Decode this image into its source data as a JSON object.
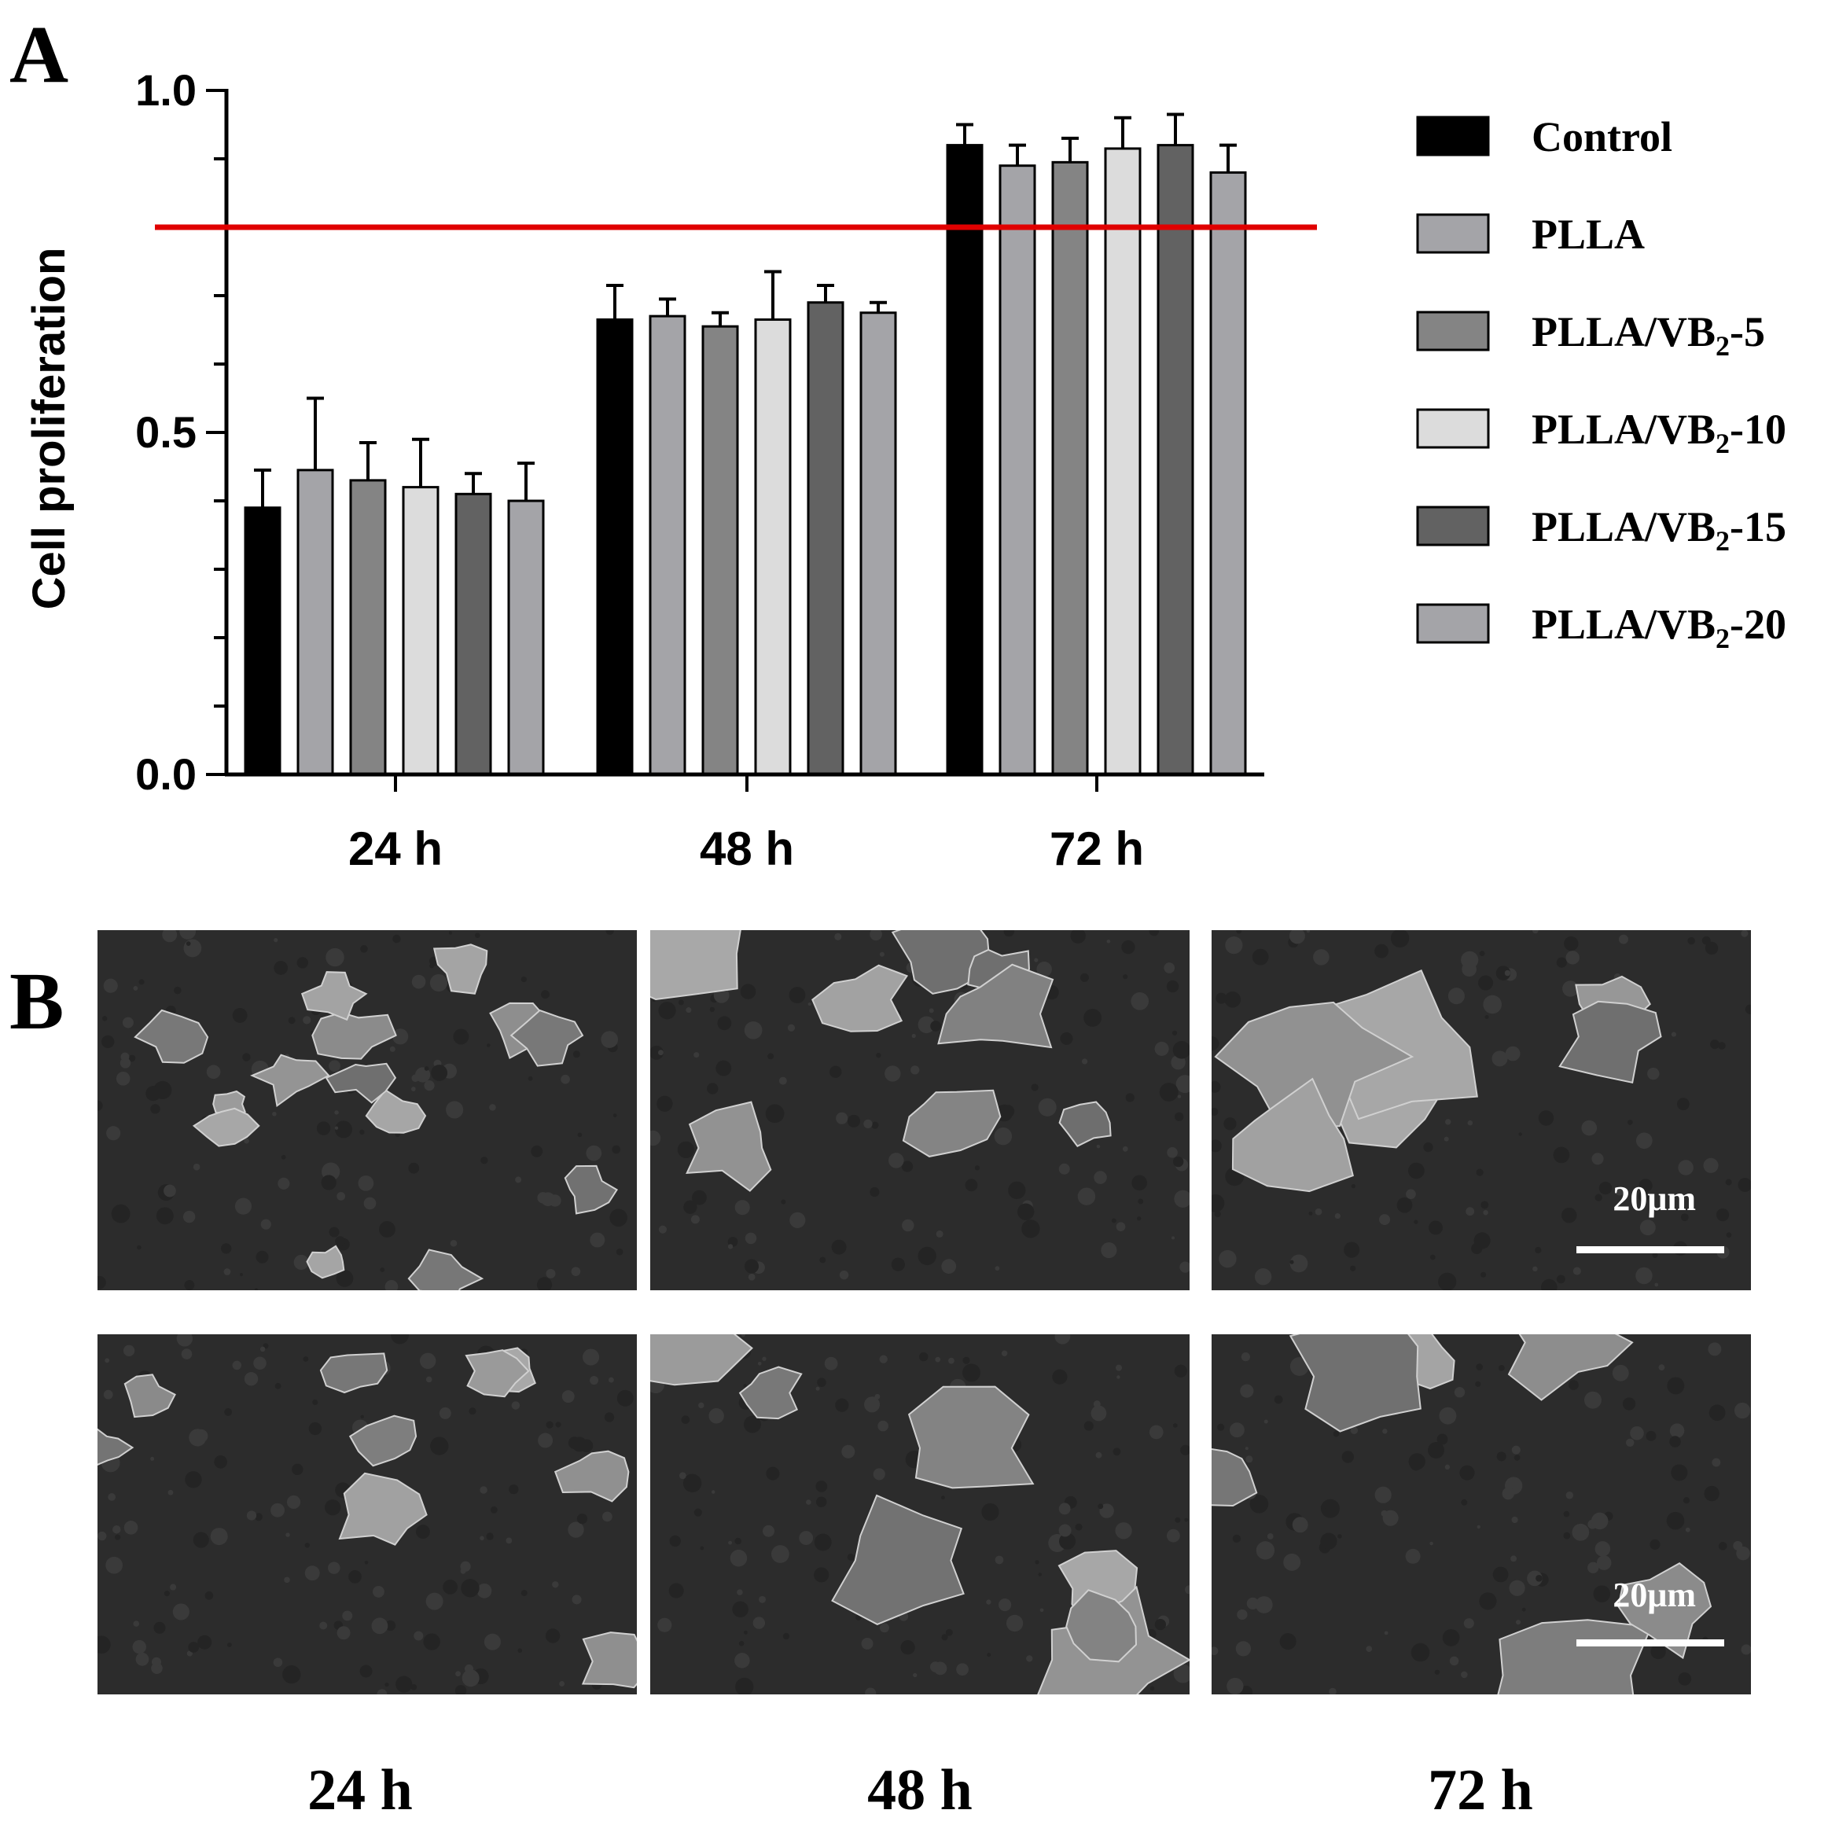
{
  "panel_a": {
    "letter": "A"
  },
  "panel_b": {
    "letter": "B"
  },
  "chart_data": {
    "type": "bar",
    "title": "",
    "xlabel": "",
    "ylabel": "Cell proliferation",
    "ylim": [
      0,
      1.0
    ],
    "yticks": [
      "0.0",
      "0.5",
      "1.0"
    ],
    "categories": [
      "24 h",
      "48 h",
      "72 h"
    ],
    "reference_line": {
      "value": 0.8,
      "color": "#e00000"
    },
    "legend_position": "right",
    "series": [
      {
        "name": "Control",
        "sub": "",
        "suffix": "",
        "color": "#000000",
        "values": [
          0.39,
          0.665,
          0.92
        ],
        "errors": [
          0.055,
          0.05,
          0.03
        ]
      },
      {
        "name": "PLLA",
        "sub": "",
        "suffix": "",
        "color": "#a4a4a8",
        "values": [
          0.445,
          0.67,
          0.89
        ],
        "errors": [
          0.105,
          0.025,
          0.03
        ]
      },
      {
        "name": "PLLA/VB",
        "sub": "2",
        "suffix": "-5",
        "color": "#848484",
        "values": [
          0.43,
          0.655,
          0.895
        ],
        "errors": [
          0.055,
          0.02,
          0.035
        ]
      },
      {
        "name": "PLLA/VB",
        "sub": "2",
        "suffix": "-10",
        "color": "#dcdcdc",
        "values": [
          0.42,
          0.665,
          0.915
        ],
        "errors": [
          0.07,
          0.07,
          0.045
        ]
      },
      {
        "name": "PLLA/VB",
        "sub": "2",
        "suffix": "-15",
        "color": "#626262",
        "values": [
          0.41,
          0.69,
          0.92
        ],
        "errors": [
          0.03,
          0.025,
          0.045
        ]
      },
      {
        "name": "PLLA/VB",
        "sub": "2",
        "suffix": "-20",
        "color": "#a4a4a8",
        "values": [
          0.4,
          0.675,
          0.88
        ],
        "errors": [
          0.055,
          0.015,
          0.04
        ]
      }
    ]
  },
  "sem_images": {
    "scale_label": "20μm",
    "time_labels": [
      "24 h",
      "48 h",
      "72 h"
    ]
  }
}
